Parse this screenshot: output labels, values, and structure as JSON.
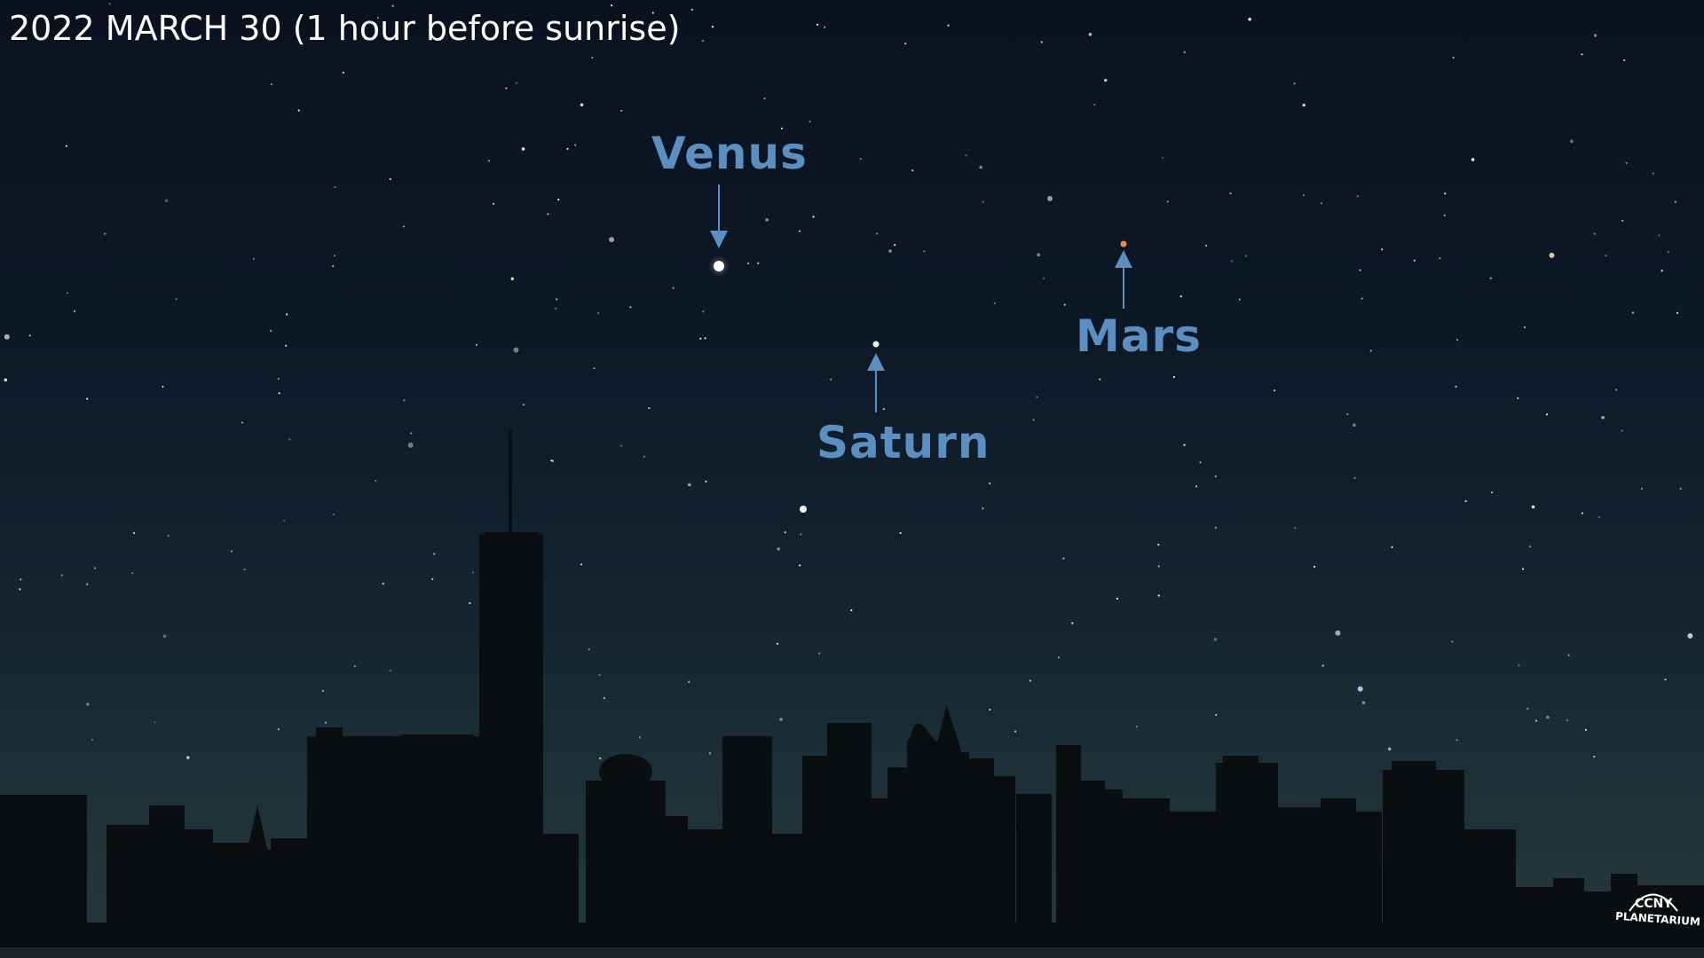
{
  "caption": "2022 MARCH 30 (1 hour before sunrise)",
  "planets": {
    "venus": {
      "label": "Venus",
      "color": "#ffffff"
    },
    "saturn": {
      "label": "Saturn",
      "color": "#f2f0e6"
    },
    "mars": {
      "label": "Mars",
      "color": "#f08a4b"
    }
  },
  "colors": {
    "label": "#5b8fc2",
    "arrow": "#5b8fc2",
    "silhouette": "#0a0e10"
  },
  "logo": {
    "line1": "CCNY",
    "line2": "PLANETARIUM"
  }
}
